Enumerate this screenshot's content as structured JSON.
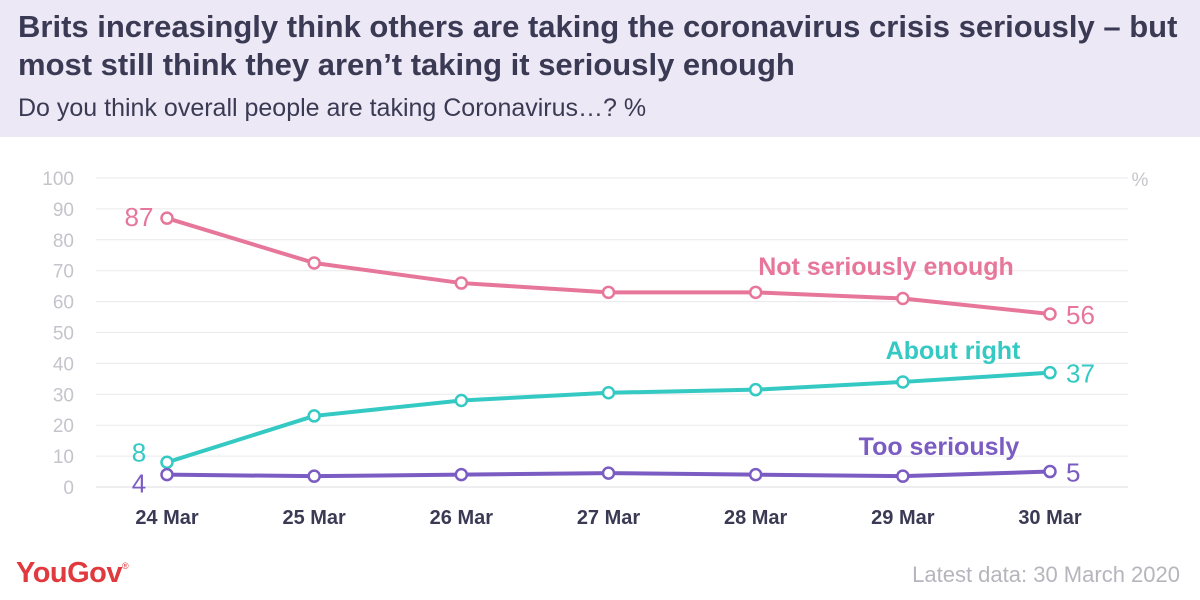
{
  "title": "Brits increasingly think others are taking the coronavirus crisis seriously – but most still think they aren’t taking it seriously enough",
  "subtitle": "Do you think overall people are taking Coronavirus…? %",
  "footer": {
    "logo": "YouGov",
    "logo_mark": "®",
    "latest_data": "Latest data: 30 March 2020"
  },
  "colors": {
    "header_bg": "#ece8f5",
    "title_text": "#3b3a54",
    "not_seriously_enough": "#e7769b",
    "about_right": "#35c9c3",
    "too_seriously": "#7b5cc2",
    "axis_text": "#c4c4cc",
    "grid": "#eaeaee",
    "logo": "#e0393e"
  },
  "chart_data": {
    "type": "line",
    "categories": [
      "24 Mar",
      "25 Mar",
      "26 Mar",
      "27 Mar",
      "28 Mar",
      "29 Mar",
      "30 Mar"
    ],
    "ylim": [
      0,
      100
    ],
    "yticks": [
      0,
      10,
      20,
      30,
      40,
      50,
      60,
      70,
      80,
      90,
      100
    ],
    "yunit": "%",
    "grid": true,
    "series": [
      {
        "name": "Not seriously enough",
        "color": "#e7769b",
        "values": [
          87,
          72.5,
          66,
          63,
          63,
          61,
          56
        ],
        "start_label": "87",
        "end_label": "56"
      },
      {
        "name": "About right",
        "color": "#35c9c3",
        "values": [
          8,
          23,
          28,
          30.5,
          31.5,
          34,
          37
        ],
        "start_label": "8",
        "end_label": "37"
      },
      {
        "name": "Too seriously",
        "color": "#7b5cc2",
        "values": [
          4,
          3.5,
          4,
          4.5,
          4,
          3.5,
          5
        ],
        "start_label": "4",
        "end_label": "5"
      }
    ]
  }
}
